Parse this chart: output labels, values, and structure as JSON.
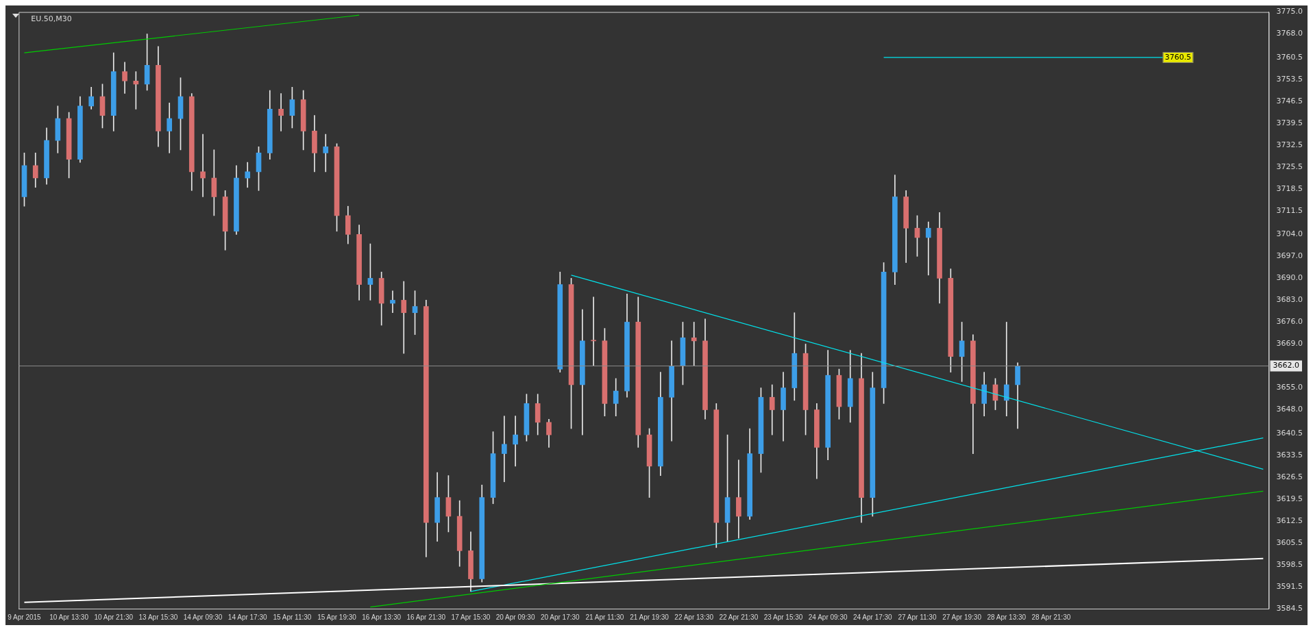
{
  "chart_data": {
    "type": "candlestick",
    "title": "EU.50,M30",
    "categories": [
      "9 Apr 2015",
      null,
      null,
      null,
      "10 Apr 13:30",
      null,
      null,
      null,
      "10 Apr 21:30",
      null,
      null,
      null,
      "13 Apr 15:30",
      null,
      null,
      null,
      "14 Apr 09:30",
      null,
      null,
      null,
      "14 Apr 17:30",
      null,
      null,
      null,
      "15 Apr 11:30",
      null,
      null,
      null,
      "15 Apr 19:30",
      null,
      null,
      null,
      "16 Apr 13:30",
      null,
      null,
      null,
      "16 Apr 21:30",
      null,
      null,
      null,
      "17 Apr 15:30",
      null,
      null,
      null,
      "20 Apr 09:30",
      null,
      null,
      null,
      "20 Apr 17:30",
      null,
      null,
      null,
      "21 Apr 11:30",
      null,
      null,
      null,
      "21 Apr 19:30",
      null,
      null,
      null,
      "22 Apr 13:30",
      null,
      null,
      null,
      "22 Apr 21:30",
      null,
      null,
      null,
      "23 Apr 15:30",
      null,
      null,
      null,
      "24 Apr 09:30",
      null,
      null,
      null,
      "24 Apr 17:30",
      null,
      null,
      null,
      "27 Apr 11:30",
      null,
      null,
      null,
      "27 Apr 19:30",
      null,
      null,
      null,
      "28 Apr 13:30",
      null,
      null,
      null,
      "28 Apr 21:30",
      null,
      null,
      null,
      null,
      null,
      null,
      null,
      null,
      null,
      null,
      null,
      null,
      null,
      null,
      null,
      null,
      null,
      null,
      null
    ],
    "ohlc": [
      [
        3716,
        3730,
        3713,
        3726
      ],
      [
        3726,
        3730,
        3719,
        3722
      ],
      [
        3722,
        3738,
        3720,
        3734
      ],
      [
        3734,
        3745,
        3730,
        3741
      ],
      [
        3741,
        3743,
        3722,
        3728
      ],
      [
        3728,
        3748,
        3727,
        3745
      ],
      [
        3745,
        3751,
        3744,
        3748
      ],
      [
        3748,
        3752,
        3738,
        3742
      ],
      [
        3742,
        3762,
        3737,
        3756
      ],
      [
        3756,
        3759,
        3749,
        3753
      ],
      [
        3753,
        3756,
        3744,
        3752
      ],
      [
        3752,
        3768,
        3750,
        3758
      ],
      [
        3758,
        3764,
        3732,
        3737
      ],
      [
        3737,
        3746,
        3730,
        3741
      ],
      [
        3741,
        3754,
        3731,
        3748
      ],
      [
        3748,
        3749,
        3718,
        3724
      ],
      [
        3724,
        3736,
        3716,
        3722
      ],
      [
        3722,
        3731,
        3710,
        3716
      ],
      [
        3716,
        3718,
        3699,
        3705
      ],
      [
        3705,
        3726,
        3704,
        3722
      ],
      [
        3722,
        3727,
        3719,
        3724
      ],
      [
        3724,
        3732,
        3718,
        3730
      ],
      [
        3730,
        3750,
        3728,
        3744
      ],
      [
        3744,
        3749,
        3737,
        3742
      ],
      [
        3742,
        3751,
        3738,
        3747
      ],
      [
        3747,
        3750,
        3731,
        3737
      ],
      [
        3737,
        3742,
        3724,
        3730
      ],
      [
        3730,
        3736,
        3724,
        3732
      ],
      [
        3732,
        3733,
        3705,
        3710
      ],
      [
        3710,
        3713,
        3701,
        3704
      ],
      [
        3704,
        3707,
        3683,
        3688
      ],
      [
        3688,
        3701,
        3683,
        3690
      ],
      [
        3690,
        3692,
        3675,
        3682
      ],
      [
        3682,
        3686,
        3679,
        3683
      ],
      [
        3683,
        3689,
        3666,
        3679
      ],
      [
        3679,
        3686,
        3672,
        3681
      ],
      [
        3681,
        3683,
        3601,
        3612
      ],
      [
        3612,
        3628,
        3606,
        3620
      ],
      [
        3620,
        3627,
        3609,
        3614
      ],
      [
        3614,
        3619,
        3598,
        3603
      ],
      [
        3603,
        3609,
        3590,
        3594
      ],
      [
        3594,
        3624,
        3593,
        3620
      ],
      [
        3620,
        3641,
        3618,
        3634
      ],
      [
        3634,
        3646,
        3625,
        3637
      ],
      [
        3637,
        3646,
        3630,
        3640
      ],
      [
        3640,
        3653,
        3638,
        3650
      ],
      [
        3650,
        3653,
        3640,
        3644
      ],
      [
        3644,
        3645,
        3636,
        3640
      ],
      [
        3661,
        3692,
        3660,
        3688
      ],
      [
        3688,
        3690,
        3642,
        3656
      ],
      [
        3656,
        3680,
        3640,
        3670
      ],
      [
        3670,
        3684,
        3662,
        3670
      ],
      [
        3670,
        3674,
        3646,
        3650
      ],
      [
        3650,
        3658,
        3646,
        3654
      ],
      [
        3654,
        3685,
        3652,
        3676
      ],
      [
        3676,
        3684,
        3636,
        3640
      ],
      [
        3640,
        3642,
        3620,
        3630
      ],
      [
        3630,
        3660,
        3627,
        3652
      ],
      [
        3652,
        3670,
        3638,
        3662
      ],
      [
        3662,
        3676,
        3656,
        3671
      ],
      [
        3671,
        3676,
        3662,
        3670
      ],
      [
        3670,
        3677,
        3645,
        3648
      ],
      [
        3648,
        3650,
        3604,
        3612
      ],
      [
        3612,
        3640,
        3606,
        3620
      ],
      [
        3620,
        3632,
        3607,
        3614
      ],
      [
        3614,
        3642,
        3613,
        3634
      ],
      [
        3634,
        3655,
        3628,
        3652
      ],
      [
        3652,
        3656,
        3640,
        3648
      ],
      [
        3648,
        3660,
        3638,
        3655
      ],
      [
        3655,
        3679,
        3651,
        3666
      ],
      [
        3666,
        3669,
        3640,
        3648
      ],
      [
        3648,
        3650,
        3626,
        3636
      ],
      [
        3636,
        3667,
        3632,
        3659
      ],
      [
        3659,
        3661,
        3645,
        3649
      ],
      [
        3649,
        3667,
        3644,
        3658
      ],
      [
        3658,
        3666,
        3612,
        3620
      ],
      [
        3620,
        3660,
        3614,
        3655
      ],
      [
        3655,
        3695,
        3650,
        3692
      ],
      [
        3692,
        3723,
        3688,
        3716
      ],
      [
        3716,
        3718,
        3695,
        3706
      ],
      [
        3706,
        3710,
        3697,
        3703
      ],
      [
        3703,
        3708,
        3691,
        3706
      ],
      [
        3706,
        3711,
        3682,
        3690
      ],
      [
        3690,
        3693,
        3660,
        3665
      ],
      [
        3665,
        3676,
        3657,
        3670
      ],
      [
        3670,
        3672,
        3634,
        3650
      ],
      [
        3650,
        3660,
        3646,
        3656
      ],
      [
        3656,
        3658,
        3648,
        3651
      ],
      [
        3651,
        3676,
        3646,
        3656
      ],
      [
        3656,
        3663,
        3642,
        3662
      ],
      null,
      null,
      null,
      null,
      null,
      null,
      null,
      null,
      null,
      null,
      null,
      null,
      null,
      null,
      null,
      null,
      null,
      null,
      null,
      null,
      null,
      null
    ],
    "series": [
      {
        "type": "line",
        "color": "#00cc00",
        "values": [
          3762,
          null,
          null,
          null,
          null,
          null,
          null,
          null,
          null,
          null,
          null,
          null,
          null,
          null,
          null,
          null,
          null,
          null,
          null,
          null,
          null,
          null,
          null,
          null,
          null,
          null,
          null,
          null,
          null,
          null,
          3774,
          null,
          null,
          null,
          null,
          null,
          null,
          null,
          null,
          null,
          null,
          null,
          null,
          null,
          null,
          null,
          null,
          null,
          null,
          null,
          null,
          null,
          null,
          null,
          null,
          null,
          null,
          null,
          null,
          null,
          null,
          null,
          null,
          null,
          null,
          null,
          null,
          null,
          null,
          null,
          null,
          null,
          null,
          null,
          null,
          null,
          null,
          null,
          null,
          null,
          null,
          null,
          null,
          null,
          null,
          null,
          null,
          null,
          null,
          null,
          null,
          null,
          null,
          null,
          null,
          null,
          null,
          null,
          null,
          null,
          null,
          null,
          null,
          null,
          null,
          null,
          null,
          null,
          null,
          null,
          null,
          null
        ]
      },
      {
        "type": "line",
        "color": "#00cc00",
        "values": [
          null,
          null,
          null,
          null,
          null,
          null,
          null,
          null,
          null,
          null,
          null,
          null,
          null,
          null,
          null,
          null,
          null,
          null,
          null,
          null,
          null,
          null,
          null,
          null,
          null,
          null,
          null,
          null,
          null,
          null,
          null,
          3585,
          null,
          null,
          null,
          null,
          null,
          null,
          null,
          null,
          null,
          null,
          null,
          null,
          null,
          null,
          null,
          null,
          null,
          null,
          null,
          null,
          null,
          null,
          null,
          null,
          null,
          null,
          null,
          null,
          null,
          null,
          null,
          null,
          null,
          null,
          null,
          null,
          null,
          null,
          null,
          null,
          null,
          null,
          null,
          null,
          null,
          null,
          null,
          null,
          null,
          null,
          null,
          null,
          null,
          null,
          null,
          null,
          null,
          null,
          null,
          null,
          null,
          null,
          null,
          null,
          null,
          null,
          null,
          null,
          null,
          null,
          null,
          null,
          null,
          null,
          null,
          null,
          null,
          null,
          null,
          3622
        ]
      },
      {
        "type": "line",
        "color": "#ffffff",
        "values": [
          3586.5,
          null,
          null,
          null,
          null,
          null,
          null,
          null,
          null,
          null,
          null,
          null,
          null,
          null,
          null,
          null,
          null,
          null,
          null,
          null,
          null,
          null,
          null,
          null,
          null,
          null,
          null,
          null,
          null,
          null,
          null,
          null,
          null,
          null,
          null,
          null,
          null,
          null,
          null,
          null,
          null,
          null,
          null,
          null,
          null,
          null,
          null,
          null,
          null,
          null,
          null,
          null,
          null,
          null,
          null,
          null,
          null,
          null,
          null,
          null,
          null,
          null,
          null,
          null,
          null,
          null,
          null,
          null,
          null,
          null,
          null,
          null,
          null,
          null,
          null,
          null,
          null,
          null,
          null,
          null,
          null,
          null,
          null,
          null,
          null,
          null,
          null,
          null,
          null,
          null,
          null,
          null,
          null,
          null,
          null,
          null,
          null,
          null,
          null,
          null,
          null,
          null,
          null,
          null,
          null,
          null,
          null,
          null,
          null,
          null,
          null,
          3600.5
        ]
      },
      {
        "type": "line",
        "color": "#00e5ee",
        "values": [
          null,
          null,
          null,
          null,
          null,
          null,
          null,
          null,
          null,
          null,
          null,
          null,
          null,
          null,
          null,
          null,
          null,
          null,
          null,
          null,
          null,
          null,
          null,
          null,
          null,
          null,
          null,
          null,
          null,
          null,
          null,
          null,
          null,
          null,
          null,
          null,
          null,
          null,
          null,
          null,
          null,
          null,
          null,
          null,
          null,
          null,
          null,
          null,
          null,
          3691,
          null,
          null,
          null,
          null,
          null,
          null,
          null,
          null,
          null,
          null,
          null,
          null,
          null,
          null,
          null,
          null,
          null,
          null,
          null,
          null,
          null,
          null,
          null,
          null,
          null,
          null,
          null,
          null,
          null,
          null,
          null,
          null,
          null,
          null,
          null,
          null,
          null,
          null,
          null,
          null,
          null,
          null,
          null,
          null,
          null,
          null,
          null,
          null,
          null,
          null,
          null,
          null,
          null,
          null,
          null,
          null,
          null,
          null,
          null,
          null,
          null,
          3629
        ]
      },
      {
        "type": "line",
        "color": "#00e5ee",
        "values": [
          null,
          null,
          null,
          null,
          null,
          null,
          null,
          null,
          null,
          null,
          null,
          null,
          null,
          null,
          null,
          null,
          null,
          null,
          null,
          null,
          null,
          null,
          null,
          null,
          null,
          null,
          null,
          null,
          null,
          null,
          null,
          null,
          null,
          null,
          null,
          null,
          null,
          null,
          null,
          null,
          3590,
          null,
          null,
          null,
          null,
          null,
          null,
          null,
          null,
          null,
          null,
          null,
          null,
          null,
          null,
          null,
          null,
          null,
          null,
          null,
          null,
          null,
          null,
          null,
          null,
          null,
          null,
          null,
          null,
          null,
          null,
          null,
          null,
          null,
          null,
          null,
          null,
          null,
          null,
          null,
          null,
          null,
          null,
          null,
          null,
          null,
          null,
          null,
          null,
          null,
          null,
          null,
          null,
          null,
          null,
          null,
          null,
          null,
          null,
          null,
          null,
          null,
          null,
          null,
          null,
          null,
          null,
          null,
          null,
          null,
          null,
          3639
        ]
      },
      {
        "type": "line",
        "color": "#00e5ee",
        "values": [
          null,
          null,
          null,
          null,
          null,
          null,
          null,
          null,
          null,
          null,
          null,
          null,
          null,
          null,
          null,
          null,
          null,
          null,
          null,
          null,
          null,
          null,
          null,
          null,
          null,
          null,
          null,
          null,
          null,
          null,
          null,
          null,
          null,
          null,
          null,
          null,
          null,
          null,
          null,
          null,
          null,
          null,
          null,
          null,
          null,
          null,
          null,
          null,
          null,
          null,
          null,
          null,
          null,
          null,
          null,
          null,
          null,
          null,
          null,
          null,
          null,
          null,
          null,
          null,
          null,
          null,
          null,
          null,
          null,
          null,
          null,
          null,
          null,
          null,
          null,
          null,
          null,
          3760.5,
          null,
          null,
          null,
          null,
          null,
          null,
          null,
          null,
          null,
          null,
          null,
          null,
          null,
          null,
          null,
          null,
          null,
          null,
          null,
          null,
          null,
          null,
          null,
          null,
          3760.5,
          null,
          null,
          null,
          null,
          null,
          null,
          null,
          null,
          null
        ],
        "value_labels": [
          null,
          null,
          null,
          null,
          null,
          null,
          null,
          null,
          null,
          null,
          null,
          null,
          null,
          null,
          null,
          null,
          null,
          null,
          null,
          null,
          null,
          null,
          null,
          null,
          null,
          null,
          null,
          null,
          null,
          null,
          null,
          null,
          null,
          null,
          null,
          null,
          null,
          null,
          null,
          null,
          null,
          null,
          null,
          null,
          null,
          null,
          null,
          null,
          null,
          null,
          null,
          null,
          null,
          null,
          null,
          null,
          null,
          null,
          null,
          null,
          null,
          null,
          null,
          null,
          null,
          null,
          null,
          null,
          null,
          null,
          null,
          null,
          null,
          null,
          null,
          null,
          null,
          null,
          null,
          null,
          null,
          null,
          null,
          null,
          null,
          null,
          null,
          null,
          null,
          null,
          null,
          null,
          null,
          null,
          null,
          null,
          null,
          null,
          null,
          null,
          null,
          null,
          "3760.5",
          null,
          null,
          null,
          null,
          null,
          null,
          null,
          null,
          null
        ]
      }
    ],
    "ylim": [
      3584.5,
      3775
    ],
    "yticks": [
      {
        "value": 3775,
        "label": "3775.0"
      },
      {
        "value": 3768,
        "label": "3768.0"
      },
      3760.5,
      3753.5,
      3746.5,
      3739.5,
      3732.5,
      3725.5,
      3718.5,
      3711.5,
      {
        "value": 3704,
        "label": "3704.0"
      },
      {
        "value": 3697,
        "label": "3697.0"
      },
      {
        "value": 3690,
        "label": "3690.0"
      },
      {
        "value": 3683,
        "label": "3683.0"
      },
      {
        "value": 3676,
        "label": "3676.0"
      },
      {
        "value": 3669,
        "label": "3669.0"
      },
      {
        "value": 3655,
        "label": "3655.0"
      },
      {
        "value": 3648,
        "label": "3648.0"
      },
      3640.5,
      3633.5,
      3626.5,
      3619.5,
      3612.5,
      3605.5,
      3598.5,
      3591.5,
      3584.5
    ],
    "ref_lines": [
      {
        "axis": "y",
        "value": 3662,
        "label": "3662.0",
        "color": "#8a8a8a"
      }
    ]
  }
}
